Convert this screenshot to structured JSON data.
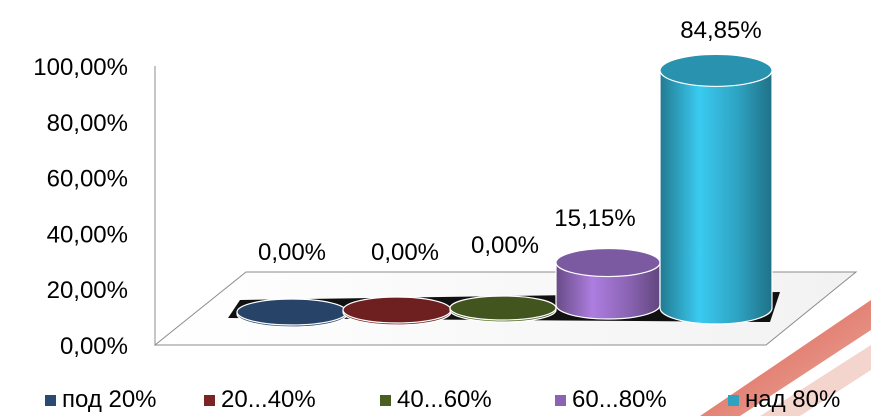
{
  "chart_data": {
    "type": "bar",
    "style": "3d-cylinder",
    "categories": [
      "под 20%",
      "20...40%",
      "40...60%",
      "60...80%",
      "над 80%"
    ],
    "values": [
      0.0,
      0.0,
      0.0,
      15.15,
      84.85
    ],
    "data_labels": [
      "0,00%",
      "0,00%",
      "0,00%",
      "15,15%",
      "84,85%"
    ],
    "colors": [
      "#2b4a72",
      "#7a2424",
      "#4a5e22",
      "#8a64b3",
      "#2ea2c1"
    ],
    "ylim": [
      0,
      100
    ],
    "yticks": [
      "0,00%",
      "20,00%",
      "40,00%",
      "60,00%",
      "80,00%",
      "100,00%"
    ],
    "ytick_values": [
      0,
      20,
      40,
      60,
      80,
      100
    ],
    "legend": {
      "position": "bottom",
      "entries": [
        "под 20%",
        "20...40%",
        "40...60%",
        "60...80%",
        "над 80%"
      ]
    },
    "grid": false
  }
}
